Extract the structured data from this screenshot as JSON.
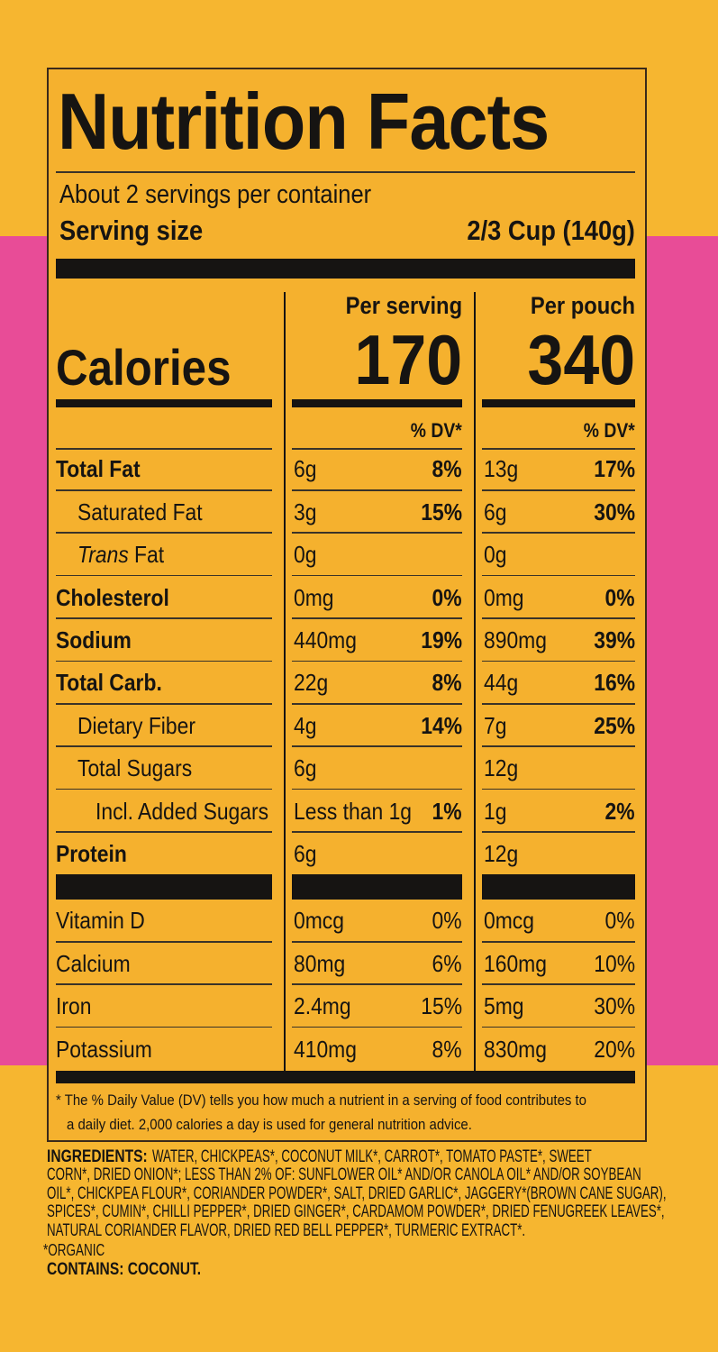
{
  "title": "Nutrition Facts",
  "servings": "About 2 servings per container",
  "serving_size": {
    "label": "Serving size",
    "value": "2/3 Cup (140g)"
  },
  "columns": [
    "Per serving",
    "Per pouch"
  ],
  "calories": {
    "label": "Calories",
    "values": [
      "170",
      "340"
    ]
  },
  "dv_header": "% DV*",
  "nutrients": [
    {
      "name": "Total Fat",
      "amount": [
        "6g",
        "13g"
      ],
      "dv": [
        "8%",
        "17%"
      ]
    },
    {
      "name": "Saturated Fat",
      "amount": [
        "3g",
        "6g"
      ],
      "dv": [
        "15%",
        "30%"
      ]
    },
    {
      "name": [
        "Trans",
        "Fat"
      ],
      "amount": [
        "0g",
        "0g"
      ]
    },
    {
      "name": "Cholesterol",
      "amount": [
        "0mg",
        "0mg"
      ],
      "dv": [
        "0%",
        "0%"
      ]
    },
    {
      "name": "Sodium",
      "amount": [
        "440mg",
        "890mg"
      ],
      "dv": [
        "19%",
        "39%"
      ]
    },
    {
      "name": "Total Carb.",
      "amount": [
        "22g",
        "44g"
      ],
      "dv": [
        "8%",
        "16%"
      ]
    },
    {
      "name": "Dietary Fiber",
      "amount": [
        "4g",
        "7g"
      ],
      "dv": [
        "14%",
        "25%"
      ]
    },
    {
      "name": "Total Sugars",
      "amount": [
        "6g",
        "12g"
      ]
    },
    {
      "name": "Incl. Added Sugars",
      "amount": [
        "Less than 1g",
        "1g"
      ],
      "dv": [
        "1%",
        "2%"
      ]
    },
    {
      "name": "Protein",
      "amount": [
        "6g",
        "12g"
      ]
    }
  ],
  "vitamins": [
    {
      "name": "Vitamin D",
      "amount": [
        "0mcg",
        "0mcg"
      ],
      "dv": [
        "0%",
        "0%"
      ]
    },
    {
      "name": "Calcium",
      "amount": [
        "80mg",
        "160mg"
      ],
      "dv": [
        "6%",
        "10%"
      ]
    },
    {
      "name": "Iron",
      "amount": [
        "2.4mg",
        "5mg"
      ],
      "dv": [
        "15%",
        "30%"
      ]
    },
    {
      "name": "Potassium",
      "amount": [
        "410mg",
        "830mg"
      ],
      "dv": [
        "8%",
        "20%"
      ]
    }
  ],
  "footnote": [
    "* The % Daily Value (DV) tells you how much a nutrient in a serving of food contributes to",
    "a daily diet. 2,000 calories a day is used for general nutrition advice."
  ],
  "ingredients": {
    "label": "INGREDIENTS:",
    "lines": [
      "WATER, CHICKPEAS*, COCONUT MILK*, CARROT*, TOMATO PASTE*, SWEET",
      "CORN*, DRIED ONION*; LESS THAN 2% OF: SUNFLOWER OIL* AND/OR CANOLA OIL* AND/OR SOYBEAN",
      "OIL*, CHICKPEA FLOUR*, CORIANDER POWDER*, SALT, DRIED GARLIC*, JAGGERY*(BROWN CANE SUGAR),",
      "SPICES*, CUMIN*, CHILLI PEPPER*, DRIED GINGER*, CARDAMOM POWDER*, DRIED FENUGREEK LEAVES*,",
      "NATURAL CORIANDER FLAVOR, DRIED RED BELL PEPPER*, TURMERIC EXTRACT*."
    ],
    "organic": "*ORGANIC",
    "contains": "CONTAINS: COCONUT."
  }
}
